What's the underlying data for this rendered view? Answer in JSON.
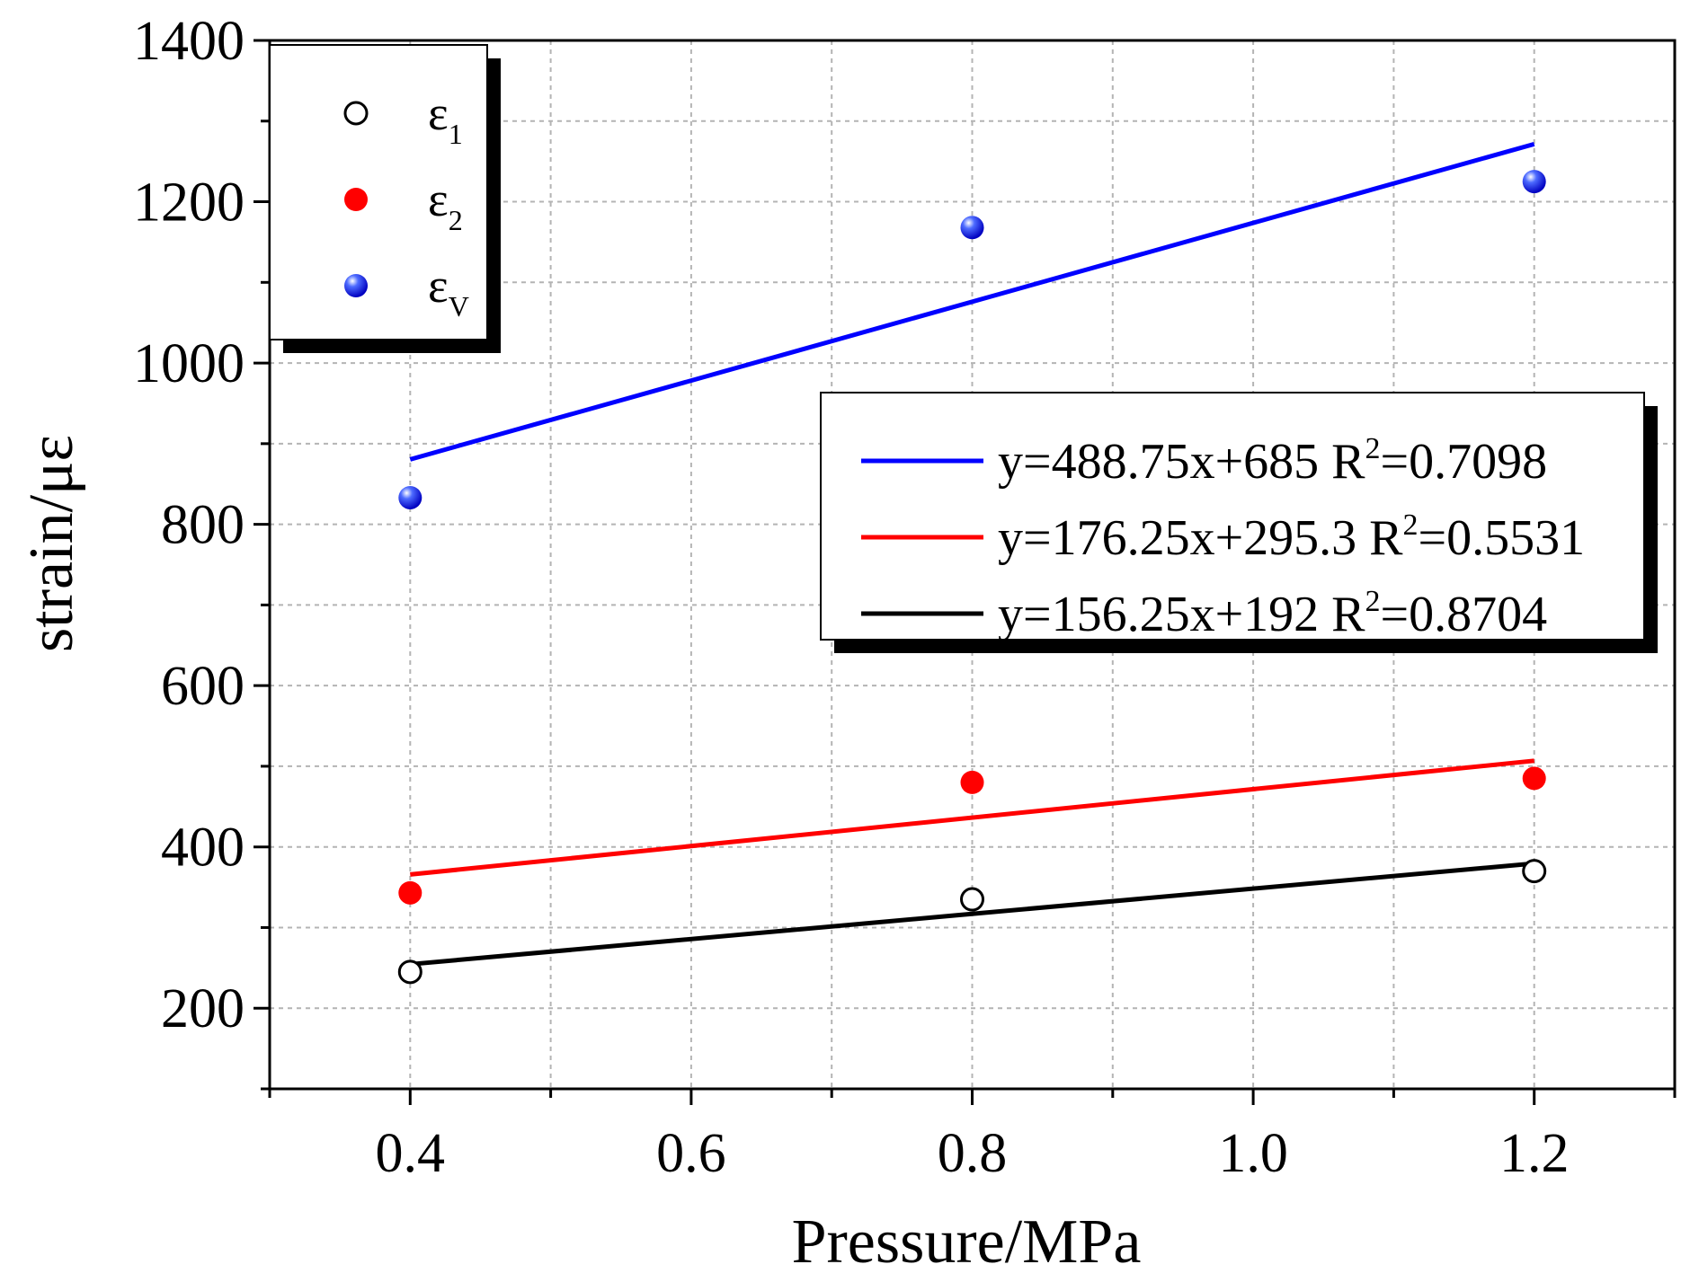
{
  "chart_data": {
    "type": "scatter",
    "xlabel": "Pressure/MPa",
    "ylabel": "strain/με",
    "xlim": [
      0.3,
      1.3
    ],
    "ylim": [
      100,
      1400
    ],
    "xticks": [
      "0.4",
      "0.6",
      "0.8",
      "1.0",
      "1.2"
    ],
    "yticks": [
      "200",
      "400",
      "600",
      "800",
      "1000",
      "1200",
      "1400"
    ],
    "grid": true,
    "x": [
      0.4,
      0.8,
      1.2
    ],
    "series": [
      {
        "name": "ε1",
        "legend_main": "ε",
        "legend_sub": "1",
        "marker": "open-circle",
        "color": "#000000",
        "values": [
          245,
          335,
          370
        ]
      },
      {
        "name": "ε2",
        "legend_main": "ε",
        "legend_sub": "2",
        "marker": "filled-circle",
        "color": "#ff0000",
        "values": [
          343,
          480,
          485
        ]
      },
      {
        "name": "εV",
        "legend_main": "ε",
        "legend_sub": "V",
        "marker": "sphere",
        "color": "#0000ff",
        "values": [
          833,
          1168,
          1225
        ]
      }
    ],
    "legend_position": "top-left",
    "fits": [
      {
        "color": "#0000ff",
        "slope": 488.75,
        "intercept": 685,
        "x_range": [
          0.4,
          1.2
        ],
        "eq": "y=488.75x+685  R",
        "r2_sup": "2",
        "r2_val": "=0.7098"
      },
      {
        "color": "#ff0000",
        "slope": 176.25,
        "intercept": 295.3,
        "x_range": [
          0.4,
          1.2
        ],
        "eq": "y=176.25x+295.3  R",
        "r2_sup": "2",
        "r2_val": "=0.5531"
      },
      {
        "color": "#000000",
        "slope": 156.25,
        "intercept": 192,
        "x_range": [
          0.4,
          1.2
        ],
        "eq": "y=156.25x+192 R",
        "r2_sup": "2",
        "r2_val": "=0.8704"
      }
    ],
    "fit_legend_position": "center-right"
  }
}
